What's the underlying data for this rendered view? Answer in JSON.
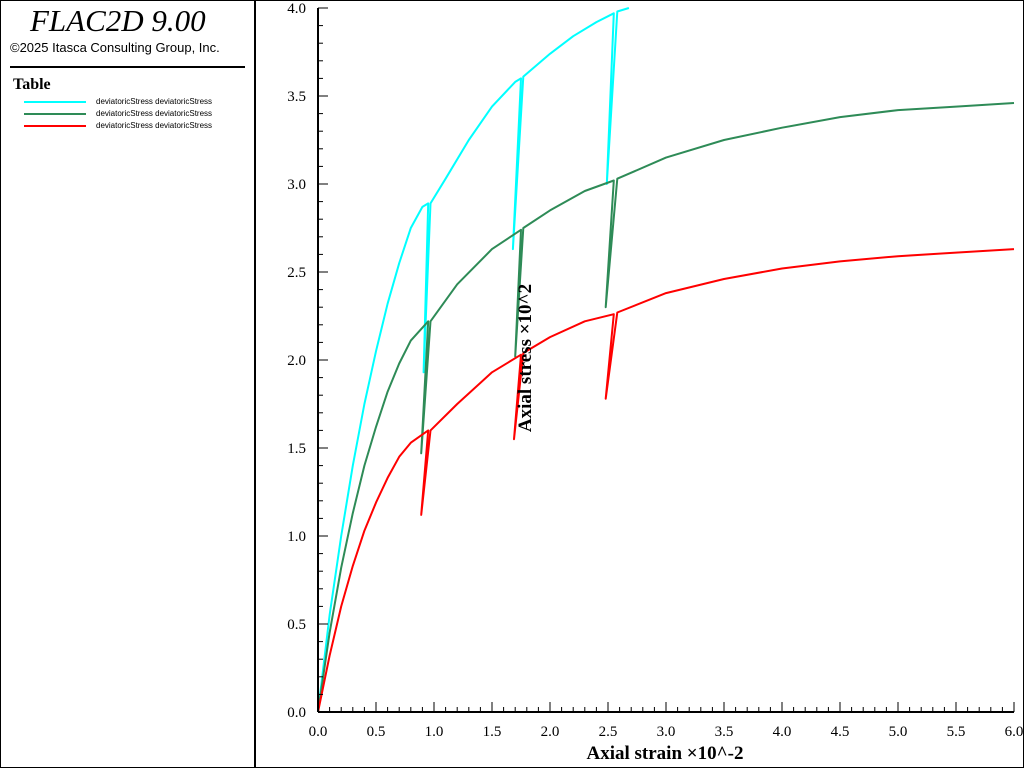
{
  "app": {
    "title": "FLAC2D 9.00",
    "copyright": "©2025 Itasca Consulting Group, Inc."
  },
  "legend": {
    "title": "Table",
    "items": [
      {
        "label": "deviatoricStress deviatoricStress",
        "color": "#00FFFF"
      },
      {
        "label": "deviatoricStress deviatoricStress",
        "color": "#2E8B57"
      },
      {
        "label": "deviatoricStress deviatoricStress",
        "color": "#FF0000"
      }
    ]
  },
  "chart_data": {
    "type": "line",
    "xlabel": "Axial strain ×10^-2",
    "ylabel": "Axial stress ×10^2",
    "xlim": [
      0,
      6
    ],
    "ylim": [
      0,
      4
    ],
    "x_ticks": [
      "0.0",
      "0.5",
      "1.0",
      "1.5",
      "2.0",
      "2.5",
      "3.0",
      "3.5",
      "4.0",
      "4.5",
      "5.0",
      "5.5",
      "6.0"
    ],
    "y_ticks": [
      "0.0",
      "0.5",
      "1.0",
      "1.5",
      "2.0",
      "2.5",
      "3.0",
      "3.5",
      "4.0"
    ],
    "series": [
      {
        "color": "#00FFFF",
        "points": [
          [
            0,
            0
          ],
          [
            0.1,
            0.55
          ],
          [
            0.2,
            1.0
          ],
          [
            0.3,
            1.4
          ],
          [
            0.4,
            1.75
          ],
          [
            0.5,
            2.05
          ],
          [
            0.6,
            2.32
          ],
          [
            0.7,
            2.55
          ],
          [
            0.8,
            2.75
          ],
          [
            0.9,
            2.87
          ],
          [
            0.95,
            2.89
          ],
          [
            0.91,
            1.93
          ],
          [
            0.97,
            2.89
          ],
          [
            1.1,
            3.03
          ],
          [
            1.3,
            3.25
          ],
          [
            1.5,
            3.44
          ],
          [
            1.7,
            3.58
          ],
          [
            1.75,
            3.6
          ],
          [
            1.68,
            2.63
          ],
          [
            1.77,
            3.61
          ],
          [
            2.0,
            3.74
          ],
          [
            2.2,
            3.84
          ],
          [
            2.4,
            3.92
          ],
          [
            2.55,
            3.97
          ],
          [
            2.49,
            3.0
          ],
          [
            2.58,
            3.98
          ],
          [
            2.68,
            4.0
          ]
        ]
      },
      {
        "color": "#2E8B57",
        "points": [
          [
            0,
            0
          ],
          [
            0.1,
            0.45
          ],
          [
            0.2,
            0.82
          ],
          [
            0.3,
            1.13
          ],
          [
            0.4,
            1.4
          ],
          [
            0.5,
            1.62
          ],
          [
            0.6,
            1.82
          ],
          [
            0.7,
            1.98
          ],
          [
            0.8,
            2.11
          ],
          [
            0.95,
            2.22
          ],
          [
            0.89,
            1.47
          ],
          [
            0.97,
            2.22
          ],
          [
            1.2,
            2.43
          ],
          [
            1.5,
            2.63
          ],
          [
            1.75,
            2.74
          ],
          [
            1.7,
            2.02
          ],
          [
            1.77,
            2.75
          ],
          [
            2.0,
            2.85
          ],
          [
            2.3,
            2.96
          ],
          [
            2.55,
            3.02
          ],
          [
            2.48,
            2.3
          ],
          [
            2.58,
            3.03
          ],
          [
            3.0,
            3.15
          ],
          [
            3.5,
            3.25
          ],
          [
            4.0,
            3.32
          ],
          [
            4.5,
            3.38
          ],
          [
            5.0,
            3.42
          ],
          [
            5.5,
            3.44
          ],
          [
            6.0,
            3.46
          ]
        ]
      },
      {
        "color": "#FF0000",
        "points": [
          [
            0,
            0
          ],
          [
            0.1,
            0.32
          ],
          [
            0.2,
            0.6
          ],
          [
            0.3,
            0.83
          ],
          [
            0.4,
            1.03
          ],
          [
            0.5,
            1.19
          ],
          [
            0.6,
            1.33
          ],
          [
            0.7,
            1.45
          ],
          [
            0.8,
            1.53
          ],
          [
            0.95,
            1.6
          ],
          [
            0.89,
            1.12
          ],
          [
            0.97,
            1.6
          ],
          [
            1.2,
            1.75
          ],
          [
            1.5,
            1.93
          ],
          [
            1.75,
            2.03
          ],
          [
            1.69,
            1.55
          ],
          [
            1.77,
            2.04
          ],
          [
            2.0,
            2.13
          ],
          [
            2.3,
            2.22
          ],
          [
            2.55,
            2.26
          ],
          [
            2.48,
            1.78
          ],
          [
            2.58,
            2.27
          ],
          [
            3.0,
            2.38
          ],
          [
            3.5,
            2.46
          ],
          [
            4.0,
            2.52
          ],
          [
            4.5,
            2.56
          ],
          [
            5.0,
            2.59
          ],
          [
            5.5,
            2.61
          ],
          [
            6.0,
            2.63
          ]
        ]
      }
    ]
  }
}
